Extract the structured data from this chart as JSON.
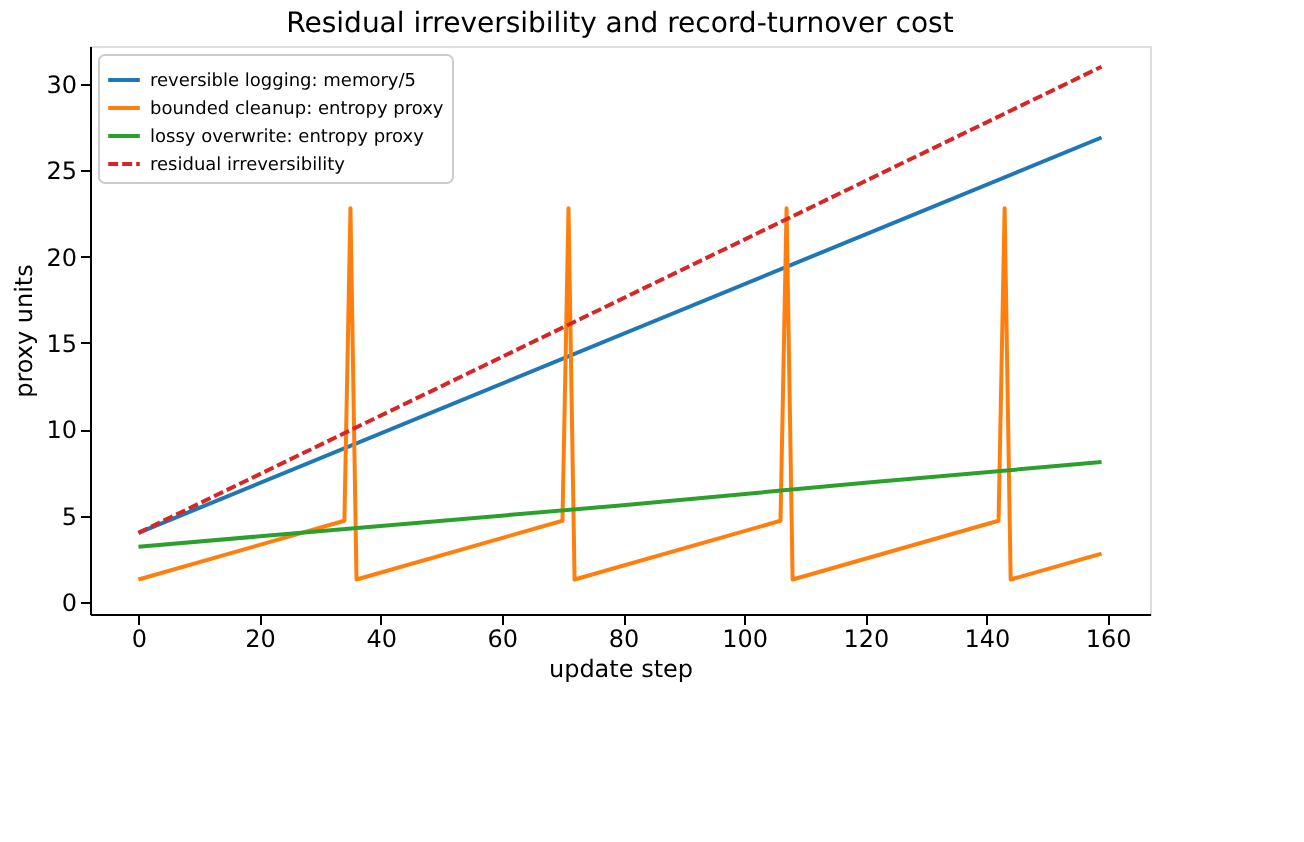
{
  "chart_data": {
    "type": "line",
    "title": "Residual irreversibility and record-turnover cost",
    "xlabel": "update step",
    "ylabel": "proxy units",
    "xlim": [
      -8,
      167
    ],
    "xticks": [
      0,
      20,
      40,
      60,
      80,
      100,
      120,
      140,
      160
    ],
    "ylim": [
      -0.7,
      32.2
    ],
    "yticks": [
      0,
      5,
      10,
      15,
      20,
      25,
      30
    ],
    "grid": false,
    "legend": "top left",
    "line_style": "solid",
    "marker": "none",
    "series": [
      {
        "name": "reversible logging: memory/5",
        "color": "#1f77b4",
        "x": [
          0,
          159
        ],
        "values": [
          4.0,
          26.9
        ]
      },
      {
        "name": "bounded cleanup: entropy proxy",
        "color": "#ff7f0e",
        "x": [
          0,
          34,
          35,
          36,
          70,
          71,
          72,
          106,
          107,
          108,
          142,
          143,
          144,
          159
        ],
        "values": [
          1.3,
          4.7,
          22.8,
          1.3,
          4.7,
          22.8,
          1.3,
          4.7,
          22.8,
          1.3,
          4.7,
          22.8,
          1.3,
          2.8
        ]
      },
      {
        "name": "lossy overwrite: entropy proxy",
        "color": "#2ca02c",
        "x": [
          0,
          40,
          80,
          120,
          159
        ],
        "values": [
          3.2,
          4.4,
          5.6,
          6.9,
          8.1
        ]
      },
      {
        "name": "residual irreversibility",
        "color": "#d62728",
        "line_style": "dashed",
        "x": [
          0,
          159
        ],
        "values": [
          4.0,
          31.0
        ]
      }
    ]
  }
}
